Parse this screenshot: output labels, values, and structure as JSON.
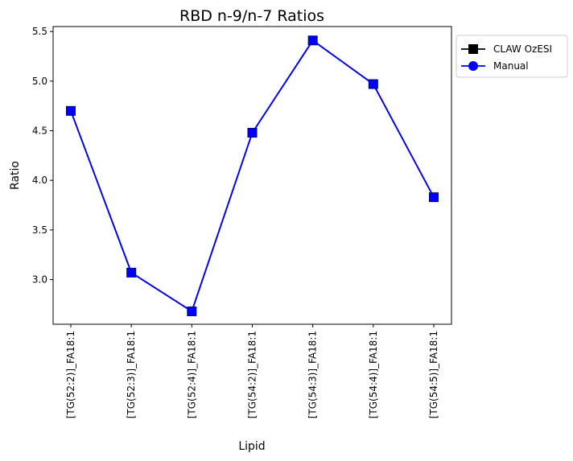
{
  "chart_data": {
    "type": "line",
    "title": "RBD n-9/n-7 Ratios",
    "xlabel": "Lipid",
    "ylabel": "Ratio",
    "categories": [
      "[TG(52:2)]_FA18:1",
      "[TG(52:3)]_FA18:1",
      "[TG(52:4)]_FA18:1",
      "[TG(54:2)]_FA18:1",
      "[TG(54:3)]_FA18:1",
      "[TG(54:4)]_FA18:1",
      "[TG(54:5)]_FA18:1"
    ],
    "ylim": [
      2.55,
      5.55
    ],
    "yticks": [
      3.0,
      3.5,
      4.0,
      4.5,
      5.0,
      5.5
    ],
    "ytick_labels": [
      "3.0",
      "3.5",
      "4.0",
      "4.5",
      "5.0",
      "5.5"
    ],
    "grid": false,
    "legend_position": "outside-top-right",
    "series": [
      {
        "name": "CLAW OzESI",
        "color": "#000000",
        "marker": "square",
        "values": [
          4.7,
          3.07,
          2.68,
          4.48,
          5.41,
          4.97,
          3.83
        ]
      },
      {
        "name": "Manual",
        "color": "#0000ff",
        "marker": "circle",
        "values": [
          4.7,
          3.07,
          2.68,
          4.48,
          5.41,
          4.97,
          3.83
        ]
      }
    ]
  }
}
